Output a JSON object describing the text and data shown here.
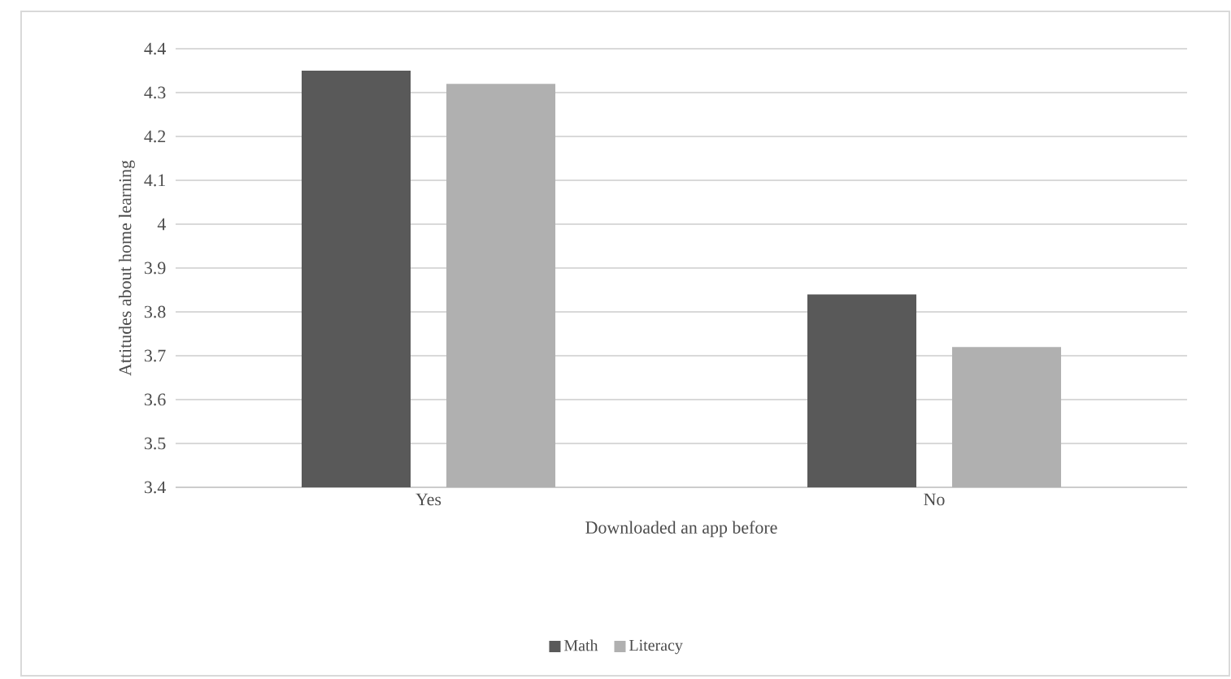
{
  "chart_data": {
    "type": "bar",
    "xlabel": "Downloaded an app before",
    "ylabel": "Attitudes about home learning",
    "categories": [
      "Yes",
      "No"
    ],
    "series": [
      {
        "name": "Math",
        "color": "#595959",
        "values": [
          4.35,
          3.84
        ]
      },
      {
        "name": "Literacy",
        "color": "#b0b0b0",
        "values": [
          4.32,
          3.72
        ]
      }
    ],
    "ylim": [
      3.4,
      4.4
    ],
    "yticks": [
      3.4,
      3.5,
      3.6,
      3.7,
      3.8,
      3.9,
      4,
      4.1,
      4.2,
      4.3,
      4.4
    ],
    "grid": "y",
    "legend": "bottom"
  }
}
